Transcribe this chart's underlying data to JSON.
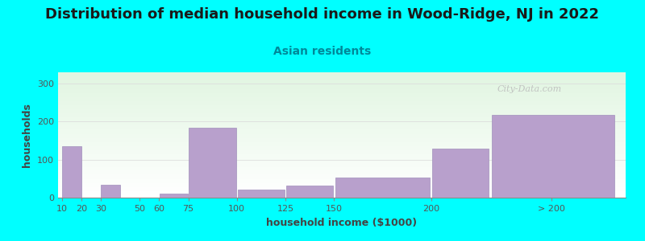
{
  "title": "Distribution of median household income in Wood-Ridge, NJ in 2022",
  "subtitle": "Asian residents",
  "xlabel": "household income ($1000)",
  "ylabel": "households",
  "background_color": "#00FFFF",
  "bar_color": "#b8a0cc",
  "bar_edge_color": "#a090bb",
  "grid_color": "#dddddd",
  "watermark": "City-Data.com",
  "ylim": [
    0,
    330
  ],
  "yticks": [
    0,
    100,
    200,
    300
  ],
  "title_fontsize": 13,
  "subtitle_fontsize": 10,
  "axis_label_fontsize": 9,
  "tick_fontsize": 8,
  "bar_lefts": [
    10,
    30,
    60,
    75,
    100,
    125,
    150,
    200,
    230
  ],
  "bar_widths": [
    10,
    10,
    15,
    25,
    25,
    25,
    50,
    30,
    65
  ],
  "bar_heights": [
    135,
    33,
    10,
    185,
    22,
    32,
    52,
    130,
    218
  ],
  "xtick_positions": [
    10,
    20,
    30,
    50,
    60,
    75,
    100,
    125,
    150,
    200,
    262
  ],
  "xtick_labels": [
    "10",
    "20",
    "30",
    "50",
    "60",
    "75",
    "100",
    "125",
    "150",
    "200",
    "> 200"
  ],
  "xlim": [
    8,
    300
  ]
}
